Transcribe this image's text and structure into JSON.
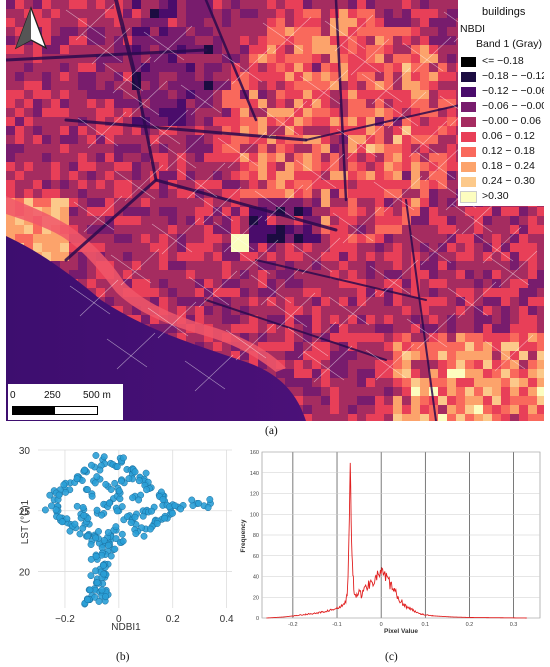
{
  "map": {
    "legend": {
      "layer_name": "buildings",
      "raster_name": "NBDI",
      "band_label": "Band 1 (Gray)",
      "classes": [
        {
          "label": "<= −0.18",
          "color": "#000000"
        },
        {
          "label": "−0.18 − −0.12",
          "color": "#1b0c41"
        },
        {
          "label": "−0.12 − −0.06",
          "color": "#4a0c6b"
        },
        {
          "label": "−0.06 − −0.00",
          "color": "#781c6d"
        },
        {
          "label": "−0.00 − 0.06",
          "color": "#a52c60"
        },
        {
          "label": "0.06 − 0.12",
          "color": "#e83f58"
        },
        {
          "label": "0.12 − 0.18",
          "color": "#f9695c"
        },
        {
          "label": "0.18 − 0.24",
          "color": "#fca36b"
        },
        {
          "label": "0.24 − 0.30",
          "color": "#fcc98a"
        },
        {
          "label": ">0.30",
          "color": "#fcfdbf"
        }
      ]
    },
    "scalebar": {
      "labels": [
        "0",
        "250",
        "500 m"
      ]
    },
    "north_arrow_icon": "north-arrow-icon"
  },
  "captions": {
    "a": "(a)",
    "b": "(b)",
    "c": "(c)"
  },
  "chart_data": [
    {
      "type": "scatter",
      "xlabel": "NDBI1",
      "ylabel": "LST (°C)1",
      "xlim": [
        -0.3,
        0.42
      ],
      "ylim": [
        17,
        30
      ],
      "x_ticks": [
        -0.2,
        0,
        0.2,
        0.4
      ],
      "x_tick_labels": [
        "−0.2",
        "0",
        "0.2",
        "0.4"
      ],
      "y_ticks": [
        20,
        25,
        30
      ],
      "color": "#2a9fd6",
      "points": [
        [
          -0.06,
          29.2
        ],
        [
          -0.03,
          28.9
        ],
        [
          0.01,
          29.0
        ],
        [
          -0.09,
          28.6
        ],
        [
          0.03,
          28.4
        ],
        [
          -0.12,
          28.2
        ],
        [
          0.05,
          28.0
        ],
        [
          -0.15,
          27.8
        ],
        [
          0.08,
          27.7
        ],
        [
          -0.18,
          27.3
        ],
        [
          0.1,
          27.2
        ],
        [
          -0.2,
          26.8
        ],
        [
          0.12,
          26.9
        ],
        [
          -0.22,
          26.4
        ],
        [
          0.15,
          26.3
        ],
        [
          -0.24,
          25.9
        ],
        [
          0.17,
          25.8
        ],
        [
          -0.25,
          25.4
        ],
        [
          0.2,
          25.5
        ],
        [
          0.22,
          25.3
        ],
        [
          0.34,
          25.6
        ],
        [
          0.29,
          25.6
        ],
        [
          -0.23,
          24.9
        ],
        [
          0.19,
          24.7
        ],
        [
          -0.21,
          24.4
        ],
        [
          0.16,
          24.3
        ],
        [
          -0.19,
          24.0
        ],
        [
          0.13,
          23.9
        ],
        [
          -0.16,
          23.6
        ],
        [
          0.1,
          23.5
        ],
        [
          -0.02,
          26.0
        ],
        [
          -0.05,
          25.5
        ],
        [
          0.0,
          25.0
        ],
        [
          -0.08,
          24.8
        ],
        [
          0.04,
          24.6
        ],
        [
          -0.1,
          26.4
        ],
        [
          0.06,
          26.2
        ],
        [
          -0.13,
          25.1
        ],
        [
          0.09,
          25.0
        ],
        [
          -0.04,
          27.0
        ],
        [
          0.02,
          27.3
        ],
        [
          -0.07,
          27.6
        ],
        [
          0.05,
          24.2
        ],
        [
          -0.11,
          23.9
        ],
        [
          0.07,
          23.3
        ],
        [
          -0.09,
          23.0
        ],
        [
          -0.03,
          22.6
        ],
        [
          -0.06,
          22.2
        ],
        [
          -0.02,
          21.8
        ],
        [
          -0.05,
          21.4
        ],
        [
          -0.08,
          21.0
        ],
        [
          -0.04,
          20.6
        ],
        [
          -0.07,
          20.2
        ],
        [
          -0.05,
          19.8
        ],
        [
          -0.08,
          19.4
        ],
        [
          -0.06,
          19.0
        ],
        [
          -0.09,
          18.6
        ],
        [
          -0.07,
          18.3
        ],
        [
          -0.1,
          18.0
        ],
        [
          -0.05,
          17.9
        ],
        [
          -0.04,
          18.1
        ],
        [
          -0.11,
          17.7
        ],
        [
          -0.03,
          22.9
        ],
        [
          -0.01,
          23.4
        ],
        [
          0.01,
          22.4
        ],
        [
          -0.1,
          22.5
        ],
        [
          -0.12,
          22.9
        ],
        [
          0.11,
          24.9
        ],
        [
          -0.14,
          24.4
        ],
        [
          0.0,
          26.6
        ]
      ]
    },
    {
      "type": "line",
      "xlabel": "Pixel Value",
      "ylabel": "Frequency",
      "xlim": [
        -0.27,
        0.36
      ],
      "ylim": [
        0,
        160
      ],
      "x_ticks": [
        -0.2,
        -0.1,
        0,
        0.1,
        0.2,
        0.3
      ],
      "x_tick_labels": [
        "-0.2",
        "-0.1",
        "0",
        "0.1",
        "0.2",
        "0.3"
      ],
      "y_ticks": [
        0,
        20,
        40,
        60,
        80,
        100,
        120,
        140,
        160
      ],
      "color": "#e02020",
      "series": [
        {
          "x": [
            -0.26,
            -0.22,
            -0.2,
            -0.18,
            -0.16,
            -0.14,
            -0.12,
            -0.1,
            -0.09,
            -0.085,
            -0.08,
            -0.078,
            -0.076,
            -0.074,
            -0.072,
            -0.07,
            -0.068,
            -0.066,
            -0.064,
            -0.062,
            -0.06,
            -0.055,
            -0.05,
            -0.045,
            -0.04,
            -0.035,
            -0.03,
            -0.025,
            -0.02,
            -0.015,
            -0.01,
            -0.005,
            0.0,
            0.005,
            0.01,
            0.015,
            0.02,
            0.025,
            0.03,
            0.035,
            0.04,
            0.05,
            0.06,
            0.07,
            0.08,
            0.09,
            0.1,
            0.12,
            0.14,
            0.16,
            0.2,
            0.26,
            0.33
          ],
          "y": [
            0,
            1,
            2,
            3,
            4,
            5,
            7,
            9,
            11,
            13,
            16,
            20,
            30,
            60,
            100,
            148,
            95,
            60,
            40,
            30,
            25,
            22,
            24,
            23,
            26,
            29,
            32,
            34,
            36,
            38,
            40,
            42,
            44,
            41,
            39,
            36,
            33,
            30,
            26,
            22,
            19,
            14,
            10,
            8,
            6,
            4,
            3,
            2,
            1.5,
            1,
            0.5,
            0.3,
            0
          ]
        }
      ]
    }
  ]
}
